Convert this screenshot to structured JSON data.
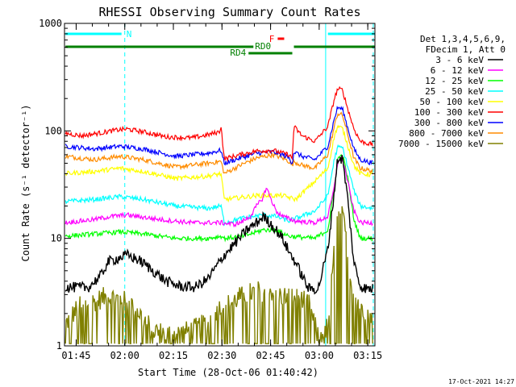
{
  "chart_data": {
    "type": "line",
    "title": "RHESSI Observing Summary Count Rates",
    "xlabel": "Start Time (28-Oct-06 01:40:42)",
    "ylabel": "Count Rate (s⁻¹ detector⁻¹)",
    "yscale": "log",
    "ylim": [
      1,
      1000
    ],
    "y_tick_labels": [
      "1",
      "10",
      "100",
      "1000"
    ],
    "xlim_minutes": [
      0.7,
      96.5
    ],
    "x_tick_labels": [
      "01:45",
      "02:00",
      "02:15",
      "02:30",
      "02:45",
      "03:00",
      "03:15"
    ],
    "x_tick_minutes": [
      4.3,
      19.3,
      34.3,
      49.3,
      64.3,
      79.3,
      94.3
    ],
    "legend_header": [
      "Det 1,3,4,5,6,9,",
      "FDecim 1, Att 0"
    ],
    "legend_position": "right",
    "footer": "17-Oct-2021 14:27",
    "grid": false,
    "series": [
      {
        "name": "3 - 6 keV",
        "color": "#000000",
        "t": [
          1,
          8,
          12,
          14,
          17,
          20,
          24,
          28,
          32,
          36,
          41,
          45,
          50,
          54,
          57,
          60,
          62,
          64,
          66,
          68,
          70,
          72,
          76,
          79,
          82,
          84,
          85,
          86.5,
          88,
          90,
          92,
          94,
          96
        ],
        "v": [
          3.5,
          3.5,
          4.5,
          6,
          6.5,
          7,
          6.2,
          5,
          4,
          3.6,
          3.5,
          4.2,
          7,
          9.5,
          12,
          14,
          16,
          14,
          12,
          10,
          7.5,
          6,
          3.4,
          3.4,
          8,
          28,
          55,
          55,
          25,
          6,
          3.6,
          3.4,
          3.4
        ]
      },
      {
        "name": "6 - 12 keV",
        "color": "#ff00ff",
        "t": [
          1,
          10,
          15,
          20,
          30,
          40,
          45,
          49,
          53,
          55,
          58,
          60,
          62,
          63,
          64,
          66,
          68,
          72,
          78,
          82,
          84,
          85,
          86.5,
          88,
          90,
          92,
          96
        ],
        "v": [
          14,
          15,
          16,
          16.5,
          15,
          14,
          14,
          14,
          13.5,
          14,
          16,
          20,
          24,
          30,
          25,
          18,
          16,
          14.5,
          14,
          16,
          30,
          52,
          55,
          35,
          18,
          14,
          14
        ]
      },
      {
        "name": "12 - 25 keV",
        "color": "#00ff00",
        "t": [
          1,
          10,
          18,
          25,
          35,
          45,
          49,
          50,
          56,
          62,
          66,
          70,
          78,
          82,
          84,
          85,
          86.5,
          88,
          90,
          92,
          96
        ],
        "v": [
          10.5,
          11,
          11.5,
          11,
          10,
          10,
          10.5,
          10,
          10.5,
          12,
          12,
          10.5,
          10,
          12,
          30,
          55,
          60,
          38,
          15,
          10,
          10
        ]
      },
      {
        "name": "25 - 50 keV",
        "color": "#00ffff",
        "t": [
          1,
          10,
          18,
          25,
          35,
          45,
          49,
          50,
          56,
          62,
          66,
          70,
          78,
          82,
          84,
          85,
          86.5,
          88,
          90,
          92,
          96
        ],
        "v": [
          22,
          23,
          24.5,
          23,
          20,
          19,
          20,
          14,
          15.5,
          16.5,
          16,
          14.5,
          18,
          25,
          55,
          70,
          70,
          48,
          28,
          20,
          19
        ]
      },
      {
        "name": "50 - 100 keV",
        "color": "#ffff00",
        "t": [
          1,
          10,
          18,
          25,
          35,
          45,
          49,
          50,
          55,
          60,
          65,
          68,
          70,
          72,
          78,
          82,
          84,
          85,
          86.5,
          88,
          90,
          92,
          96
        ],
        "v": [
          40,
          42,
          45,
          42,
          36,
          38,
          40,
          23,
          24,
          25,
          25,
          25,
          24,
          23,
          34,
          45,
          90,
          110,
          105,
          75,
          48,
          40,
          39
        ]
      },
      {
        "name": "100 - 300 keV",
        "color": "#ff0000",
        "t": [
          1,
          6,
          12,
          17,
          20,
          25,
          32,
          40,
          45,
          48.5,
          49,
          50,
          55,
          60,
          65,
          68,
          70,
          71,
          71.5,
          74,
          78,
          82,
          84,
          85,
          86.5,
          88,
          90,
          92,
          96
        ],
        "v": [
          95,
          90,
          96,
          102,
          104,
          98,
          88,
          86,
          92,
          98,
          112,
          55,
          60,
          65,
          66,
          62,
          60,
          55,
          110,
          90,
          80,
          110,
          200,
          245,
          240,
          165,
          105,
          80,
          74
        ]
      },
      {
        "name": "300 - 800 keV",
        "color": "#0000ff",
        "t": [
          1,
          10,
          18,
          25,
          35,
          45,
          49,
          50,
          55,
          60,
          65,
          68,
          70,
          71,
          71.5,
          74,
          78,
          82,
          84,
          85,
          86.5,
          88,
          90,
          92,
          96
        ],
        "v": [
          72,
          68,
          72,
          68,
          58,
          62,
          66,
          50,
          56,
          62,
          64,
          60,
          56,
          50,
          64,
          58,
          54,
          72,
          130,
          165,
          160,
          110,
          68,
          54,
          50
        ]
      },
      {
        "name": "800 - 7000 keV",
        "color": "#ff8c00",
        "t": [
          1,
          10,
          18,
          25,
          35,
          45,
          49,
          50,
          55,
          60,
          65,
          68,
          70,
          71,
          71.5,
          74,
          78,
          82,
          84,
          85,
          86.5,
          88,
          90,
          92,
          96
        ],
        "v": [
          58,
          54,
          58,
          54,
          46,
          50,
          52,
          40,
          48,
          56,
          60,
          56,
          52,
          48,
          52,
          48,
          45,
          60,
          110,
          145,
          140,
          95,
          56,
          45,
          42
        ]
      },
      {
        "name": "7000 - 15000 keV",
        "color": "#808000",
        "t": [
          1,
          5,
          10,
          14,
          18,
          22,
          25,
          28,
          32,
          36,
          40,
          44,
          48,
          52,
          56,
          60,
          64,
          68,
          72,
          76,
          79,
          82,
          83,
          84,
          85,
          86.5,
          88,
          89,
          90,
          92,
          94,
          96
        ],
        "v": [
          1.6,
          2.3,
          2.6,
          2.9,
          2.7,
          2.4,
          1.8,
          1.4,
          1.3,
          1.3,
          1.4,
          1.6,
          2.2,
          2.5,
          3.0,
          3.2,
          3.3,
          2.9,
          2.8,
          2.5,
          1.2,
          1.5,
          3.5,
          8,
          16,
          16,
          9,
          4.5,
          3,
          2.4,
          2.1,
          2.0
        ]
      }
    ]
  },
  "annotations": {
    "night_label": "N",
    "flare_label": "F",
    "rd0_label": "RD0",
    "rd4_label": "RD4",
    "night_color": "#00ffff",
    "flare_color": "#ff0000",
    "rd_color": "#008000",
    "night_bars_minutes": [
      [
        1,
        18.3
      ],
      [
        82,
        96.5
      ]
    ],
    "night_dashed_lines_minutes": [
      19.3,
      96
    ],
    "night_solid_lines_minutes": [
      0.7,
      81.3
    ],
    "flare_bar_minutes": [
      66.5,
      68.5
    ],
    "rd0_bars_minutes": [
      [
        1,
        59
      ],
      [
        71.5,
        96.5
      ]
    ],
    "rd4_bar_minutes": [
      57.5,
      71
    ]
  }
}
